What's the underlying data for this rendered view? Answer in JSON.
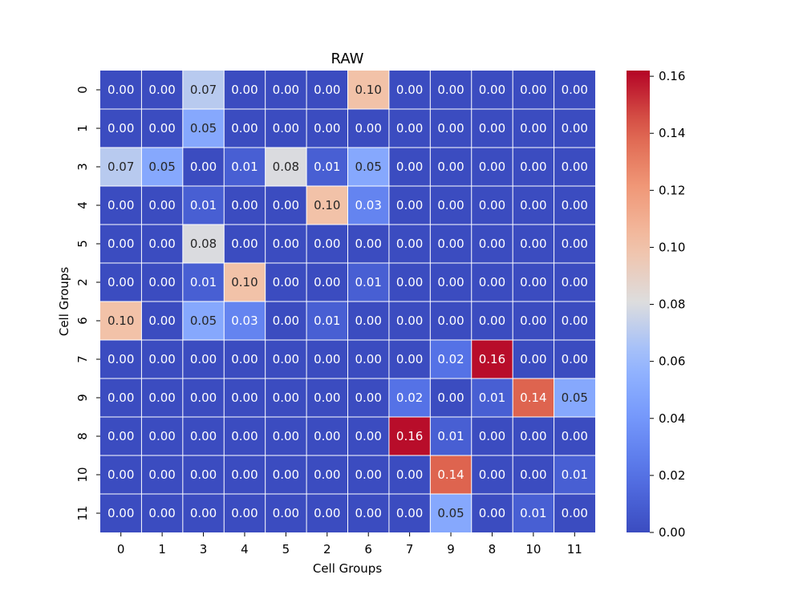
{
  "chart_data": {
    "type": "heatmap",
    "title": "RAW",
    "xlabel": "Cell Groups",
    "ylabel": "Cell Groups",
    "x_categories": [
      "0",
      "1",
      "3",
      "4",
      "5",
      "2",
      "6",
      "7",
      "9",
      "8",
      "10",
      "11"
    ],
    "y_categories": [
      "0",
      "1",
      "3",
      "4",
      "5",
      "2",
      "6",
      "7",
      "9",
      "8",
      "10",
      "11"
    ],
    "values": [
      [
        0.0,
        0.0,
        0.07,
        0.0,
        0.0,
        0.0,
        0.1,
        0.0,
        0.0,
        0.0,
        0.0,
        0.0
      ],
      [
        0.0,
        0.0,
        0.05,
        0.0,
        0.0,
        0.0,
        0.0,
        0.0,
        0.0,
        0.0,
        0.0,
        0.0
      ],
      [
        0.07,
        0.05,
        0.0,
        0.01,
        0.08,
        0.01,
        0.05,
        0.0,
        0.0,
        0.0,
        0.0,
        0.0
      ],
      [
        0.0,
        0.0,
        0.01,
        0.0,
        0.0,
        0.1,
        0.03,
        0.0,
        0.0,
        0.0,
        0.0,
        0.0
      ],
      [
        0.0,
        0.0,
        0.08,
        0.0,
        0.0,
        0.0,
        0.0,
        0.0,
        0.0,
        0.0,
        0.0,
        0.0
      ],
      [
        0.0,
        0.0,
        0.01,
        0.1,
        0.0,
        0.0,
        0.01,
        0.0,
        0.0,
        0.0,
        0.0,
        0.0
      ],
      [
        0.1,
        0.0,
        0.05,
        0.03,
        0.0,
        0.01,
        0.0,
        0.0,
        0.0,
        0.0,
        0.0,
        0.0
      ],
      [
        0.0,
        0.0,
        0.0,
        0.0,
        0.0,
        0.0,
        0.0,
        0.0,
        0.02,
        0.16,
        0.0,
        0.0
      ],
      [
        0.0,
        0.0,
        0.0,
        0.0,
        0.0,
        0.0,
        0.0,
        0.02,
        0.0,
        0.01,
        0.14,
        0.05
      ],
      [
        0.0,
        0.0,
        0.0,
        0.0,
        0.0,
        0.0,
        0.0,
        0.16,
        0.01,
        0.0,
        0.0,
        0.0
      ],
      [
        0.0,
        0.0,
        0.0,
        0.0,
        0.0,
        0.0,
        0.0,
        0.0,
        0.14,
        0.0,
        0.0,
        0.01
      ],
      [
        0.0,
        0.0,
        0.0,
        0.0,
        0.0,
        0.0,
        0.0,
        0.0,
        0.05,
        0.0,
        0.01,
        0.0
      ]
    ],
    "colormap": "coolwarm",
    "vmin": 0.0,
    "vmax": 0.162,
    "colorbar_ticks": [
      0.0,
      0.02,
      0.04,
      0.06,
      0.08,
      0.1,
      0.12,
      0.14,
      0.16
    ],
    "colorbar_tick_labels": [
      "0.00",
      "0.02",
      "0.04",
      "0.06",
      "0.08",
      "0.10",
      "0.12",
      "0.14",
      "0.16"
    ],
    "annotation_format": "2 decimals",
    "grid_lines_color": "#ffffff"
  }
}
